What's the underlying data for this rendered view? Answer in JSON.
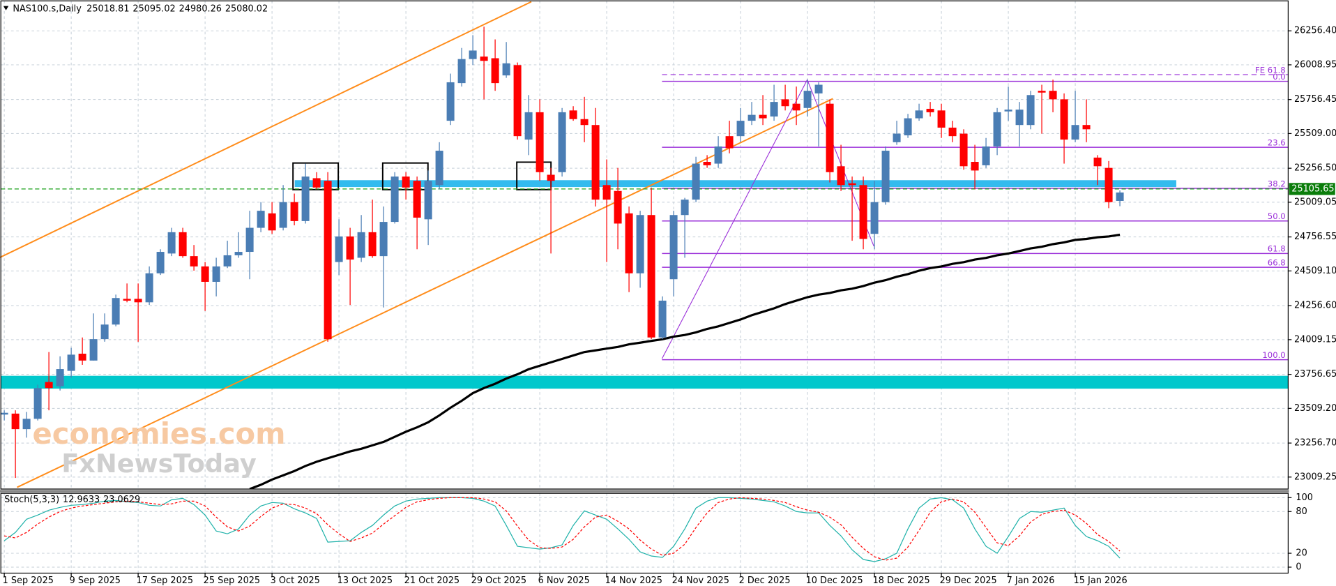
{
  "chart_data": [
    {
      "type": "candlestick",
      "title": "NAS100.s,Daily",
      "categories": [
        "1 Sep 2025",
        null,
        null,
        null,
        null,
        null,
        "9 Sep 2025",
        null,
        null,
        null,
        null,
        null,
        "17 Sep 2025",
        null,
        null,
        null,
        null,
        null,
        "25 Sep 2025",
        null,
        null,
        null,
        null,
        null,
        "3 Oct 2025",
        null,
        null,
        null,
        null,
        null,
        "13 Oct 2025",
        null,
        null,
        null,
        null,
        null,
        "21 Oct 2025",
        null,
        null,
        null,
        null,
        null,
        "29 Oct 2025",
        null,
        null,
        null,
        null,
        null,
        "6 Nov 2025",
        null,
        null,
        null,
        null,
        null,
        "14 Nov 2025",
        null,
        null,
        null,
        null,
        null,
        "24 Nov 2025",
        null,
        null,
        null,
        null,
        null,
        "2 Dec 2025",
        null,
        null,
        null,
        null,
        null,
        "10 Dec 2025",
        null,
        null,
        null,
        null,
        null,
        "18 Dec 2025",
        null,
        null,
        null,
        null,
        null,
        "29 Dec 2025",
        null,
        null,
        null,
        null,
        null,
        "7 Jan 2026",
        null,
        null,
        null,
        null,
        null,
        "15 Jan 2026",
        null,
        null,
        null,
        null
      ],
      "open": [
        23464,
        23471,
        23358,
        23433,
        23701,
        23670,
        23782,
        23907,
        23857,
        24013,
        24119,
        24306,
        24306,
        24281,
        24492,
        24636,
        24791,
        24617,
        24542,
        24430,
        24542,
        24623,
        24648,
        24823,
        24928,
        24823,
        25010,
        24872,
        25184,
        25165,
        24574,
        24760,
        24605,
        24791,
        24617,
        24866,
        25196,
        25165,
        24885,
        25134,
        25602,
        25876,
        26051,
        26069,
        26057,
        25932,
        26007,
        25465,
        25664,
        25209,
        25228,
        25677,
        25614,
        25571,
        25134,
        25091,
        24928,
        24492,
        24916,
        24025,
        24449,
        24916,
        25028,
        25303,
        25290,
        25490,
        25490,
        25602,
        25645,
        25633,
        25758,
        25726,
        25695,
        25801,
        25726,
        25271,
        25147,
        25134,
        24779,
        25010,
        25446,
        25496,
        25620,
        25689,
        25677,
        25552,
        25508,
        25303,
        25278,
        25415,
        25670,
        25571,
        25571,
        25820,
        25820,
        25758,
        25465,
        25571,
        25334,
        25259,
        25018.81
      ],
      "high": [
        23495,
        23495,
        23483,
        23682,
        23919,
        23888,
        23950,
        24025,
        24200,
        24200,
        24337,
        24418,
        24418,
        24542,
        24667,
        24823,
        24823,
        24698,
        24574,
        24605,
        24729,
        24791,
        24947,
        25010,
        25010,
        25134,
        25072,
        25290,
        25228,
        25228,
        24885,
        24823,
        24916,
        25028,
        24978,
        25228,
        25228,
        25196,
        25240,
        25446,
        25945,
        26132,
        26225,
        26287,
        26194,
        26175,
        26026,
        25789,
        25758,
        25259,
        25695,
        25708,
        25776,
        25695,
        25321,
        25259,
        24978,
        24947,
        25116,
        24324,
        24947,
        25041,
        25340,
        25352,
        25490,
        25602,
        25695,
        25739,
        25789,
        25864,
        25864,
        25851,
        25901,
        25882,
        25758,
        25427,
        25196,
        25196,
        25165,
        25415,
        25602,
        25652,
        25726,
        25739,
        25726,
        25602,
        25540,
        25427,
        25477,
        25695,
        25851,
        25739,
        25820,
        25864,
        25901,
        25801,
        25820,
        25758,
        25352,
        25309,
        25095.02
      ],
      "low": [
        23421,
        23003,
        23296,
        23421,
        23495,
        23639,
        23732,
        23826,
        23857,
        23994,
        24106,
        24281,
        23994,
        24262,
        24480,
        24617,
        24605,
        24511,
        24218,
        24324,
        24530,
        24605,
        24449,
        24791,
        24779,
        24804,
        24841,
        24854,
        25103,
        23994,
        24480,
        24262,
        24574,
        24605,
        24243,
        24854,
        25028,
        24667,
        24698,
        25103,
        25571,
        25851,
        26007,
        25758,
        25820,
        25914,
        25465,
        25352,
        25165,
        24636,
        25196,
        25602,
        25446,
        24978,
        24574,
        24667,
        24355,
        24387,
        24013,
        24013,
        24324,
        24605,
        25010,
        25259,
        25259,
        25365,
        25446,
        25571,
        25571,
        25602,
        25677,
        25571,
        25633,
        25415,
        25153,
        25091,
        24729,
        24667,
        24667,
        24991,
        25427,
        25477,
        25602,
        25633,
        25477,
        25446,
        25246,
        25103,
        25259,
        25352,
        25602,
        25415,
        25540,
        25508,
        25664,
        25290,
        25446,
        25446,
        25134,
        24966,
        24980.26
      ],
      "close": [
        23477,
        23358,
        23433,
        23657,
        23657,
        23795,
        23900,
        23857,
        24013,
        24119,
        24312,
        24293,
        24281,
        24492,
        24648,
        24791,
        24617,
        24542,
        24430,
        24542,
        24623,
        24648,
        24823,
        24947,
        24804,
        25010,
        24872,
        25196,
        25116,
        24013,
        24760,
        24592,
        24791,
        24617,
        24866,
        25196,
        25116,
        24897,
        25165,
        25384,
        25882,
        26051,
        26113,
        26038,
        25876,
        26020,
        25490,
        25664,
        25228,
        25165,
        25664,
        25614,
        25571,
        25028,
        25028,
        24854,
        24492,
        24916,
        24025,
        24293,
        24916,
        25028,
        25290,
        25278,
        25415,
        25402,
        25602,
        25645,
        25620,
        25739,
        25708,
        25677,
        25820,
        25864,
        25228,
        25134,
        25134,
        24742,
        25010,
        25384,
        25508,
        25620,
        25677,
        25664,
        25552,
        25490,
        25271,
        25240,
        25415,
        25664,
        25683,
        25683,
        25789,
        25807,
        25758,
        25465,
        25571,
        25540,
        25271,
        25010,
        25080.02
      ],
      "colors": {
        "up": "#4a7db4",
        "down": "#ff0000"
      },
      "lines": [
        {
          "color": "#000000",
          "values": [
            null,
            null,
            null,
            null,
            null,
            null,
            null,
            null,
            null,
            null,
            null,
            null,
            null,
            null,
            null,
            null,
            null,
            null,
            null,
            null,
            null,
            null,
            22922,
            22953,
            22991,
            23022,
            23053,
            23090,
            23121,
            23146,
            23171,
            23196,
            23215,
            23240,
            23265,
            23302,
            23339,
            23371,
            23408,
            23458,
            23514,
            23564,
            23620,
            23657,
            23688,
            23726,
            23757,
            23794,
            23819,
            23844,
            23869,
            23894,
            23919,
            23931,
            23944,
            23956,
            23975,
            23987,
            24000,
            24012,
            24031,
            24043,
            24062,
            24087,
            24106,
            24131,
            24156,
            24187,
            24212,
            24237,
            24268,
            24293,
            24318,
            24337,
            24349,
            24368,
            24380,
            24399,
            24424,
            24442,
            24467,
            24486,
            24511,
            24530,
            24542,
            24561,
            24573,
            24592,
            24604,
            24623,
            24636,
            24654,
            24673,
            24685,
            24704,
            24717,
            24735,
            24742,
            24754,
            24760,
            24773
          ]
        }
      ],
      "ylim": [
        22922,
        26474.5
      ],
      "yticks": [
        {
          "value": 26256.4,
          "label": "26256.40"
        },
        {
          "value": 26008.95,
          "label": "26008.95"
        },
        {
          "value": 25756.45,
          "label": "25756.45"
        },
        {
          "value": 25509,
          "label": "25509.00"
        },
        {
          "value": 25256.5,
          "label": "25256.50"
        },
        {
          "value": 25009.05,
          "label": "25009.05"
        },
        {
          "value": 24756.55,
          "label": "24756.55"
        },
        {
          "value": 24509.1,
          "label": "24509.10"
        },
        {
          "value": 24256.6,
          "label": "24256.60"
        },
        {
          "value": 24009.15,
          "label": "24009.15"
        },
        {
          "value": 23756.65,
          "label": "23756.65"
        },
        {
          "value": 23509.2,
          "label": "23509.20"
        },
        {
          "value": 23256.7,
          "label": "23256.70"
        },
        {
          "value": 23009.25,
          "label": "23009.25"
        }
      ],
      "grid": true,
      "last_price": 25105.65,
      "fibonacci": {
        "color": "#9b30d9",
        "levels": [
          {
            "name": "FE 61.8",
            "price": 25938,
            "dashed": true
          },
          {
            "name": "0.0",
            "price": 25889
          },
          {
            "name": "23.6",
            "price": 25409
          },
          {
            "name": "38.2",
            "price": 25110
          },
          {
            "name": "50.0",
            "price": 24873
          },
          {
            "name": "61.8",
            "price": 24636
          },
          {
            "name": "66.8",
            "price": 24536
          },
          {
            "name": "100.0",
            "price": 23863
          }
        ]
      },
      "watermark": [
        "economies.com",
        "FxNewsToday"
      ]
    },
    {
      "type": "line",
      "title": "Stoch(5,3,3)",
      "series": [
        {
          "color": "#20b2aa",
          "values": [
            38,
            50,
            69,
            75,
            82,
            86,
            89,
            90,
            92,
            95,
            96,
            94,
            93,
            89,
            88,
            97,
            99,
            90,
            75,
            52,
            48,
            55,
            75,
            88,
            93,
            92,
            84,
            78,
            70,
            36,
            37,
            38,
            50,
            60,
            75,
            88,
            95,
            98,
            99,
            100,
            100,
            100,
            99,
            95,
            88,
            60,
            30,
            28,
            26,
            28,
            32,
            60,
            81,
            75,
            69,
            55,
            40,
            22,
            16,
            14,
            30,
            55,
            85,
            95,
            100,
            100,
            99,
            98,
            96,
            94,
            88,
            80,
            78,
            78,
            60,
            45,
            25,
            11,
            8,
            12,
            20,
            55,
            85,
            98,
            100,
            97,
            85,
            55,
            30,
            20,
            44,
            70,
            80,
            79,
            82,
            85,
            60,
            44,
            38,
            30,
            12.9633
          ]
        },
        {
          "color": "#ff0000",
          "dashed": true,
          "values": [
            45,
            42,
            50,
            62,
            72,
            80,
            85,
            88,
            90,
            92,
            94,
            95,
            94,
            92,
            90,
            91,
            95,
            95,
            88,
            72,
            58,
            52,
            59,
            73,
            85,
            91,
            90,
            85,
            77,
            61,
            48,
            37,
            42,
            49,
            62,
            74,
            86,
            94,
            97,
            99,
            100,
            100,
            100,
            98,
            94,
            81,
            59,
            39,
            28,
            27,
            29,
            40,
            58,
            72,
            75,
            66,
            55,
            39,
            26,
            17,
            20,
            33,
            57,
            78,
            93,
            98,
            100,
            99,
            98,
            96,
            93,
            87,
            82,
            79,
            72,
            61,
            43,
            27,
            15,
            10,
            13,
            29,
            53,
            79,
            94,
            98,
            94,
            79,
            57,
            35,
            31,
            45,
            65,
            76,
            80,
            82,
            75,
            63,
            47,
            37,
            23.0629
          ]
        }
      ],
      "ylim": [
        -8.6,
        106.2
      ],
      "yticks": [
        0,
        20,
        80,
        100
      ],
      "grid": true
    }
  ]
}
